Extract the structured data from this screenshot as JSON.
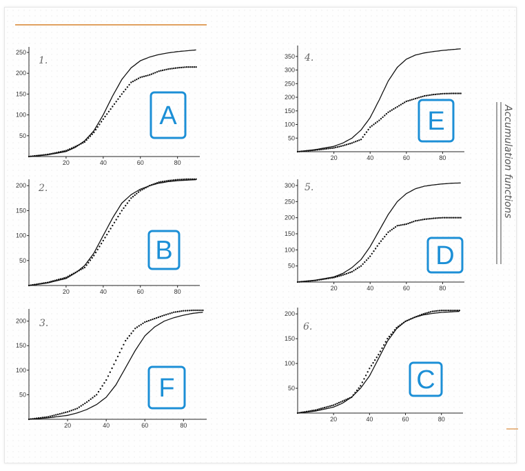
{
  "side_title": "Accumulation functions",
  "colors": {
    "curve": "#111111",
    "marker_blue": "#1c8fd6",
    "rule_orange": "#e0a060"
  },
  "chart_data": [
    {
      "type": "line",
      "panel_number": "1.",
      "letter": "A",
      "xlim": [
        0,
        92
      ],
      "ylim": [
        0,
        260
      ],
      "xticks": [
        20,
        40,
        60,
        80
      ],
      "yticks": [
        50,
        100,
        150,
        200,
        250
      ],
      "series": [
        {
          "style": "solid",
          "x": [
            0,
            10,
            20,
            25,
            30,
            35,
            40,
            45,
            50,
            55,
            60,
            65,
            70,
            75,
            80,
            85,
            90
          ],
          "y": [
            0,
            4,
            12,
            22,
            38,
            62,
            100,
            145,
            185,
            213,
            230,
            239,
            245,
            249,
            252,
            254,
            256
          ]
        },
        {
          "style": "dotted",
          "x": [
            0,
            10,
            20,
            25,
            30,
            35,
            40,
            45,
            50,
            55,
            60,
            65,
            70,
            75,
            80,
            85,
            90
          ],
          "y": [
            0,
            5,
            14,
            24,
            35,
            58,
            90,
            120,
            150,
            178,
            190,
            196,
            205,
            210,
            213,
            215,
            215
          ]
        }
      ]
    },
    {
      "type": "line",
      "panel_number": "4.",
      "letter": "E",
      "xlim": [
        0,
        92
      ],
      "ylim": [
        0,
        385
      ],
      "xticks": [
        20,
        40,
        60,
        80
      ],
      "yticks": [
        50,
        100,
        150,
        200,
        250,
        300,
        350
      ],
      "series": [
        {
          "style": "solid",
          "x": [
            0,
            10,
            20,
            25,
            30,
            35,
            40,
            45,
            50,
            55,
            60,
            65,
            70,
            75,
            80,
            85,
            90
          ],
          "y": [
            0,
            8,
            20,
            32,
            50,
            80,
            125,
            190,
            260,
            310,
            340,
            355,
            363,
            368,
            372,
            375,
            378
          ]
        },
        {
          "style": "dotted",
          "x": [
            0,
            10,
            20,
            25,
            30,
            35,
            40,
            45,
            50,
            55,
            60,
            65,
            70,
            75,
            80,
            85,
            90
          ],
          "y": [
            0,
            6,
            14,
            22,
            32,
            45,
            90,
            115,
            145,
            165,
            185,
            195,
            205,
            210,
            213,
            214,
            214
          ]
        }
      ]
    },
    {
      "type": "line",
      "panel_number": "2.",
      "letter": "B",
      "xlim": [
        0,
        92
      ],
      "ylim": [
        0,
        210
      ],
      "xticks": [
        20,
        40,
        60,
        80
      ],
      "yticks": [
        50,
        100,
        150,
        200
      ],
      "series": [
        {
          "style": "solid",
          "x": [
            0,
            10,
            20,
            25,
            30,
            35,
            40,
            45,
            50,
            55,
            60,
            65,
            70,
            75,
            80,
            85,
            90
          ],
          "y": [
            0,
            5,
            14,
            25,
            40,
            65,
            100,
            135,
            165,
            182,
            193,
            200,
            205,
            208,
            210,
            211,
            212
          ]
        },
        {
          "style": "dotted",
          "x": [
            0,
            10,
            20,
            25,
            30,
            35,
            40,
            45,
            50,
            55,
            60,
            65,
            70,
            75,
            80,
            85,
            90
          ],
          "y": [
            0,
            6,
            16,
            26,
            36,
            60,
            90,
            120,
            150,
            175,
            190,
            200,
            207,
            210,
            212,
            213,
            213
          ]
        }
      ]
    },
    {
      "type": "line",
      "panel_number": "5.",
      "letter": "D",
      "xlim": [
        0,
        92
      ],
      "ylim": [
        0,
        315
      ],
      "xticks": [
        20,
        40,
        60,
        80
      ],
      "yticks": [
        50,
        100,
        150,
        200,
        250,
        300
      ],
      "series": [
        {
          "style": "solid",
          "x": [
            0,
            10,
            20,
            25,
            30,
            35,
            40,
            45,
            50,
            55,
            60,
            65,
            70,
            75,
            80,
            85,
            90
          ],
          "y": [
            0,
            6,
            16,
            27,
            45,
            70,
            110,
            160,
            210,
            250,
            275,
            290,
            298,
            302,
            305,
            307,
            308
          ]
        },
        {
          "style": "dotted",
          "x": [
            0,
            10,
            20,
            25,
            30,
            35,
            40,
            45,
            50,
            55,
            60,
            65,
            70,
            75,
            80,
            85,
            90
          ],
          "y": [
            0,
            5,
            14,
            22,
            32,
            50,
            80,
            120,
            155,
            175,
            180,
            190,
            195,
            198,
            200,
            200,
            200
          ]
        }
      ]
    },
    {
      "type": "line",
      "panel_number": "3.",
      "letter": "F",
      "xlim": [
        0,
        92
      ],
      "ylim": [
        0,
        222
      ],
      "xticks": [
        20,
        40,
        60,
        80
      ],
      "yticks": [
        50,
        100,
        150,
        200
      ],
      "series": [
        {
          "style": "solid",
          "x": [
            0,
            10,
            20,
            25,
            30,
            35,
            40,
            45,
            50,
            55,
            60,
            65,
            70,
            75,
            80,
            85,
            90
          ],
          "y": [
            0,
            3,
            8,
            13,
            20,
            30,
            45,
            70,
            105,
            140,
            170,
            188,
            200,
            207,
            212,
            216,
            218
          ]
        },
        {
          "style": "dotted",
          "x": [
            0,
            10,
            20,
            25,
            30,
            35,
            40,
            45,
            50,
            55,
            60,
            65,
            70,
            75,
            80,
            85,
            90
          ],
          "y": [
            0,
            5,
            15,
            22,
            35,
            50,
            80,
            120,
            160,
            185,
            198,
            205,
            212,
            218,
            221,
            222,
            222
          ]
        }
      ]
    },
    {
      "type": "line",
      "panel_number": "6.",
      "letter": "C",
      "xlim": [
        0,
        92
      ],
      "ylim": [
        0,
        210
      ],
      "xticks": [
        20,
        40,
        60,
        80
      ],
      "yticks": [
        50,
        100,
        150,
        200
      ],
      "series": [
        {
          "style": "solid",
          "x": [
            0,
            10,
            20,
            25,
            30,
            35,
            40,
            45,
            50,
            55,
            60,
            65,
            70,
            75,
            80,
            85,
            90
          ],
          "y": [
            0,
            4,
            12,
            20,
            32,
            50,
            75,
            110,
            145,
            170,
            185,
            193,
            198,
            201,
            203,
            204,
            205
          ]
        },
        {
          "style": "dotted",
          "x": [
            0,
            10,
            20,
            25,
            30,
            35,
            40,
            45,
            50,
            55,
            60,
            65,
            70,
            75,
            80,
            85,
            90
          ],
          "y": [
            0,
            6,
            16,
            24,
            32,
            55,
            90,
            118,
            150,
            172,
            185,
            193,
            200,
            205,
            207,
            207,
            207
          ]
        }
      ]
    }
  ]
}
